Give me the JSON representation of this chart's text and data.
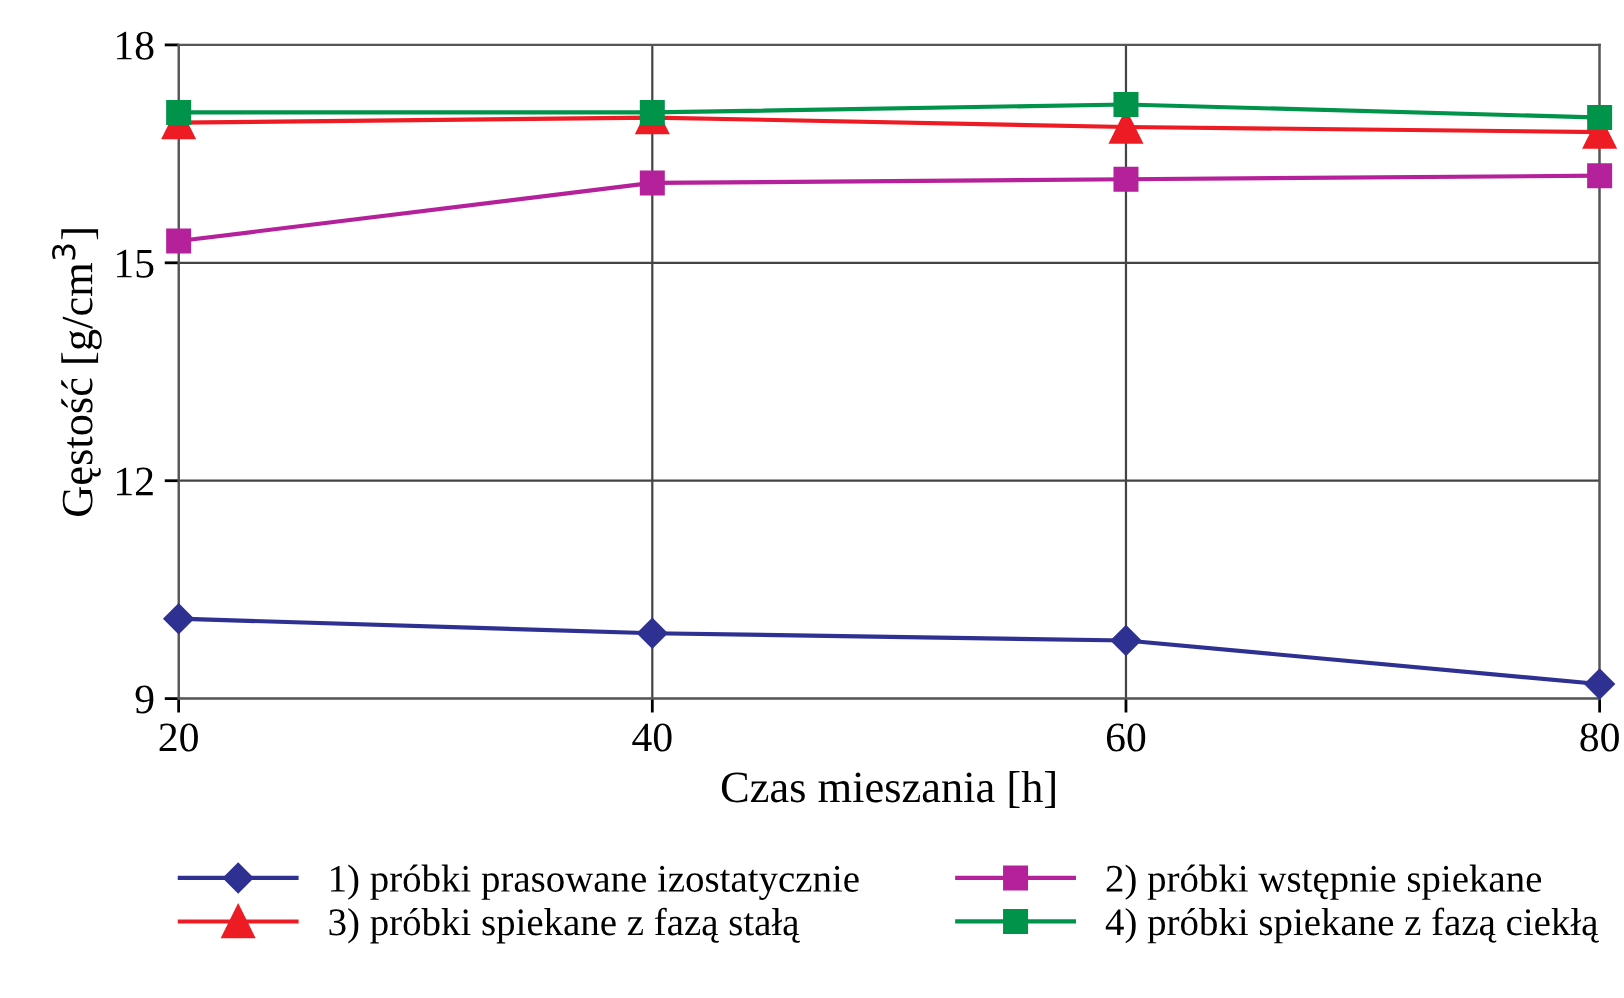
{
  "chart_data": {
    "type": "line",
    "xlabel": "Czas mieszania [h]",
    "ylabel": "Gęstość [g/cm$^{3}$]",
    "x": [
      20,
      40,
      60,
      80
    ],
    "xlim": [
      20,
      80
    ],
    "xticks": [
      20,
      40,
      60,
      80
    ],
    "ylim": [
      9,
      18
    ],
    "yticks": [
      9,
      12,
      15,
      18
    ],
    "grid": true,
    "legend": "bottom",
    "series": [
      {
        "name": "1) próbki prasowane izostatycznie",
        "color": "#2e3192",
        "marker": "diamond",
        "values": [
          10.1,
          9.9,
          9.8,
          9.2
        ]
      },
      {
        "name": "2) próbki wstępnie spiekane",
        "color": "#b5219a",
        "marker": "square",
        "values": [
          15.3,
          16.1,
          16.15,
          16.2
        ]
      },
      {
        "name": "3) próbki spiekane z fazą stałą",
        "color": "#ed1c24",
        "marker": "triangle",
        "values": [
          16.93,
          17.0,
          16.87,
          16.8
        ]
      },
      {
        "name": "4) próbki spiekane z fazą ciekłą",
        "color": "#00934a",
        "marker": "square",
        "values": [
          17.07,
          17.07,
          17.18,
          17.0
        ]
      }
    ]
  }
}
